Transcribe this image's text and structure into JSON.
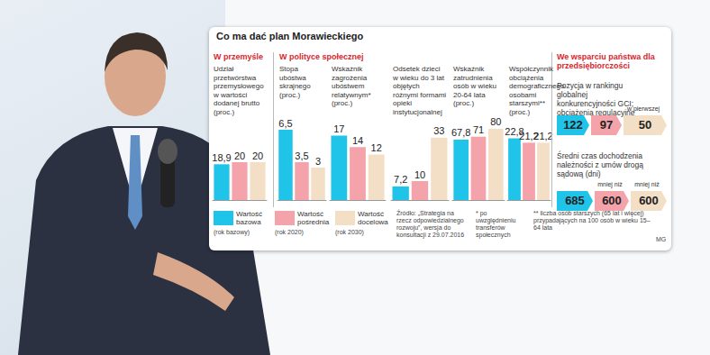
{
  "title": "Co ma dać plan Morawieckiego",
  "sections": [
    "W przemyśle",
    "W polityce społecznej",
    "We wsparciu państwa dla przedsiębiorczości"
  ],
  "chart_data": [
    {
      "type": "bar",
      "title": "Udział przetwórstwa przemysłowego w wartości dodanej brutto (proc.)",
      "values": [
        18.9,
        20,
        20
      ],
      "value_labels": [
        "18,9",
        "20",
        "20"
      ],
      "colors": [
        "#20c4e8",
        "#f4a3ab",
        "#f3dfc6"
      ],
      "data_labels": true,
      "tick_labels": false,
      "grid": false,
      "ylim": [
        0,
        40
      ]
    },
    {
      "type": "bar",
      "title": "Stopa ubóstwa skrajnego (proc.)",
      "values": [
        6.5,
        3.5,
        3
      ],
      "value_labels": [
        "6,5",
        "3,5",
        "3"
      ],
      "colors": [
        "#20c4e8",
        "#f4a3ab",
        "#f3dfc6"
      ],
      "data_labels": true,
      "tick_labels": false,
      "grid": false,
      "ylim": [
        0,
        7
      ]
    },
    {
      "type": "bar",
      "title": "Wskaźnik zagrożenia ubóstwem relatywnym* (proc.)",
      "values": [
        17,
        14,
        12
      ],
      "colors": [
        "#20c4e8",
        "#f4a3ab",
        "#f3dfc6"
      ],
      "data_labels": true,
      "tick_labels": false,
      "grid": false,
      "ylim": [
        0,
        20
      ]
    },
    {
      "type": "bar",
      "title": "Odsetek dzieci w wieku do 3 lat objętych różnymi formami opieki instytucjonalnej",
      "values": [
        7.2,
        10,
        33
      ],
      "value_labels": [
        "7,2",
        "10",
        "33"
      ],
      "colors": [
        "#20c4e8",
        "#f4a3ab",
        "#f3dfc6"
      ],
      "data_labels": true,
      "tick_labels": false,
      "grid": false,
      "ylim": [
        0,
        40
      ]
    },
    {
      "type": "bar",
      "title": "Wskaźnik zatrudnienia osób w wieku 20-64 lata (proc.)",
      "values": [
        67.8,
        71,
        80
      ],
      "value_labels": [
        "67,8",
        "71",
        "80"
      ],
      "colors": [
        "#20c4e8",
        "#f4a3ab",
        "#f3dfc6"
      ],
      "data_labels": true,
      "tick_labels": false,
      "grid": false,
      "ylim": [
        0,
        85
      ]
    },
    {
      "type": "bar",
      "title": "Współczynnik obciążenia demograficznego osobami starszymi** (proc.)",
      "values": [
        22.8,
        21.2,
        21.2
      ],
      "value_labels": [
        "22,8",
        "21,2",
        "21,2"
      ],
      "colors": [
        "#20c4e8",
        "#f4a3ab",
        "#f3dfc6"
      ],
      "data_labels": true,
      "tick_labels": false,
      "grid": false,
      "ylim": [
        0,
        28
      ]
    }
  ],
  "legend": [
    {
      "label": "Wartość bazowa",
      "note": "(rok bazowy)",
      "color": "#20c4e8"
    },
    {
      "label": "Wartość pośrednia",
      "note": "(rok 2020)",
      "color": "#f4a3ab"
    },
    {
      "label": "Wartość docelowa",
      "note": "(rok 2030)",
      "color": "#f3dfc6"
    }
  ],
  "state_support": [
    {
      "title": "Pozycja w rankingu globalnej konkurencyjności GCI; obciążenia regulacyjne",
      "boxes": [
        {
          "value": 122
        },
        {
          "value": 97
        },
        {
          "value": 50,
          "note": "w pierwszej"
        }
      ]
    },
    {
      "title": "Średni czas dochodzenia należności z umów drogą sądową (dni)",
      "boxes": [
        {
          "value": 685
        },
        {
          "value": 600,
          "note": "mniej niż"
        },
        {
          "value": 600,
          "note": "mniej niż"
        }
      ]
    }
  ],
  "source": "Źródło: „Strategia na rzecz odpowiedzialnego rozwoju”, wersja do konsultacji z 29.07.2016",
  "footnotes": [
    "* po uwzględnieniu transferów społecznych",
    "** liczba osób starszych (65 lat i więcej) przypadających na 100 osób w wieku 15–64 lata"
  ],
  "credit": "MG"
}
